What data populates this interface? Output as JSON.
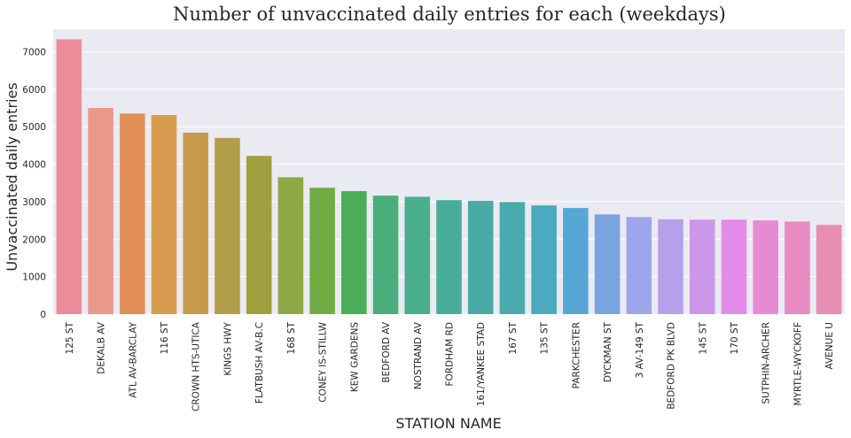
{
  "chart_data": {
    "type": "bar",
    "title": "Number of unvaccinated daily entries for each (weekdays)",
    "xlabel": "STATION NAME",
    "ylabel": "Unvaccinated daily entries",
    "ylim": [
      0,
      7600
    ],
    "yticks": [
      0,
      1000,
      2000,
      3000,
      4000,
      5000,
      6000,
      7000
    ],
    "grid": true,
    "categories": [
      "125 ST",
      "DEKALB AV",
      "ATL AV-BARCLAY",
      "116 ST",
      "CROWN HTS-UTICA",
      "KINGS HWY",
      "FLATBUSH AV-B.C",
      "168 ST",
      "CONEY IS-STILLW",
      "KEW GARDENS",
      "BEDFORD AV",
      "NOSTRAND AV",
      "FORDHAM RD",
      "161/YANKEE STAD",
      "167 ST",
      "135 ST",
      "PARKCHESTER",
      "DYCKMAN ST",
      "3 AV-149 ST",
      "BEDFORD PK BLVD",
      "145 ST",
      "170 ST",
      "SUTPHIN-ARCHER",
      "MYRTLE-WYCKOFF",
      "AVENUE U"
    ],
    "values": [
      7330,
      5500,
      5350,
      5310,
      4840,
      4700,
      4220,
      3650,
      3370,
      3280,
      3160,
      3130,
      3040,
      3020,
      2990,
      2900,
      2830,
      2660,
      2590,
      2530,
      2520,
      2520,
      2500,
      2470,
      2380
    ],
    "colors": [
      "#eb8d99",
      "#e9998b",
      "#e28e57",
      "#d79b4e",
      "#c59b4b",
      "#b29d48",
      "#a0a03f",
      "#8ea843",
      "#70ad44",
      "#4aad57",
      "#4aae7c",
      "#4aaf8d",
      "#49ad9b",
      "#48aba5",
      "#4aabae",
      "#4aaac0",
      "#56a7d6",
      "#79a4e0",
      "#9ea6eb",
      "#b7a0ea",
      "#cc97e9",
      "#e38be9",
      "#e68ad3",
      "#e58bc1",
      "#e88db2"
    ],
    "style": {
      "background": "#eaeaf2",
      "grid_color": "#ffffff",
      "text_color": "#262626"
    }
  }
}
